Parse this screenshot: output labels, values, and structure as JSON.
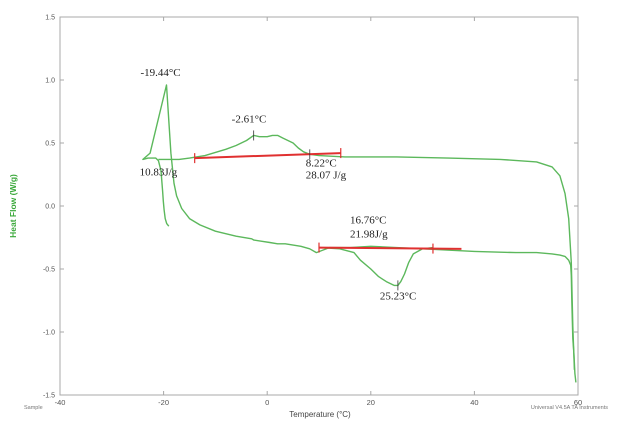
{
  "chart_data": {
    "type": "line",
    "title": "",
    "xlabel": "Temperature (°C)",
    "ylabel": "Heat Flow (W/g)",
    "xlim": [
      -40,
      60
    ],
    "ylim": [
      -1.5,
      1.5
    ],
    "x_ticks": [
      "-40",
      "-20",
      "0",
      "20",
      "40",
      "60"
    ],
    "y_ticks": [
      "1.5",
      "1.0",
      "0.5",
      "0.0",
      "-0.5",
      "-1.0",
      "-1.5"
    ],
    "grid": false,
    "colors": {
      "curve": "#5cb85c",
      "baseline": "#e03030",
      "axis": "#999999"
    },
    "series": [
      {
        "x": [
          -19.0,
          -19.4,
          -19.7,
          -19.9,
          -20.05,
          -20.2,
          -20.5,
          -21.0,
          -21.5,
          -22.0,
          -22.5,
          -23.0,
          -24.0,
          -22.6,
          -19.44,
          -18.6,
          -18.0,
          -17.5,
          -16.5,
          -15.0,
          -13.0,
          -10.0,
          -6.0,
          -3.0,
          -2.61,
          -1.0,
          0.5,
          2.0,
          3.5,
          5.0,
          6.5,
          8.2,
          9.5,
          12.0,
          16.0,
          20.0,
          30.0,
          40.0,
          48.0,
          52.0,
          55.0,
          56.5,
          57.5,
          58.2,
          58.6,
          58.7,
          58.8,
          59.0,
          59.2,
          59.4,
          59.6
        ],
        "y": [
          -0.16,
          -0.14,
          -0.1,
          -0.03,
          0.04,
          0.12,
          0.28,
          0.36,
          0.38,
          0.38,
          0.38,
          0.38,
          0.37,
          0.42,
          0.96,
          0.42,
          0.18,
          0.08,
          -0.02,
          -0.1,
          -0.15,
          -0.2,
          -0.24,
          -0.26,
          -0.27,
          -0.28,
          -0.29,
          -0.3,
          -0.3,
          -0.31,
          -0.32,
          -0.34,
          -0.37,
          -0.33,
          -0.33,
          -0.32,
          -0.34,
          -0.36,
          -0.37,
          -0.37,
          -0.38,
          -0.39,
          -0.4,
          -0.43,
          -0.47,
          -0.55,
          -0.75,
          -1.05,
          -1.17,
          -1.33,
          -1.4
        ]
      },
      {
        "x": [
          -21.0,
          -19.0,
          -17.0,
          -15.0,
          -12.0,
          -8.0,
          -6.0,
          -4.0,
          -2.61,
          -1.5,
          0.0,
          1.0,
          2.0,
          3.0,
          4.0,
          5.0,
          6.0,
          7.0,
          8.22,
          10.0,
          15.0,
          25.0,
          35.0,
          45.0,
          52.0,
          55.0,
          56.5,
          57.5,
          58.2,
          58.7,
          59.0,
          59.3
        ],
        "y": [
          0.37,
          0.37,
          0.37,
          0.38,
          0.4,
          0.45,
          0.48,
          0.52,
          0.56,
          0.55,
          0.55,
          0.56,
          0.56,
          0.54,
          0.52,
          0.5,
          0.46,
          0.43,
          0.41,
          0.4,
          0.39,
          0.39,
          0.38,
          0.37,
          0.35,
          0.31,
          0.24,
          0.1,
          -0.1,
          -0.45,
          -0.95,
          -1.3
        ]
      },
      {
        "x": [
          10.0,
          14.0,
          16.76,
          18.0,
          20.0,
          21.5,
          23.0,
          24.5,
          25.23,
          25.8,
          26.5,
          27.3,
          28.2,
          30.0,
          32.0
        ],
        "y": [
          -0.33,
          -0.34,
          -0.37,
          -0.43,
          -0.5,
          -0.56,
          -0.6,
          -0.63,
          -0.63,
          -0.6,
          -0.54,
          -0.45,
          -0.38,
          -0.34,
          -0.33
        ]
      }
    ],
    "baselines": [
      {
        "x1": -14,
        "y1": 0.38,
        "x2": 14.2,
        "y2": 0.42,
        "ticks": [
          -14,
          14.2
        ]
      },
      {
        "x1": 10,
        "y1": -0.33,
        "x2": 37.5,
        "y2": -0.34,
        "ticks": [
          10,
          32
        ]
      }
    ],
    "annotations": [
      {
        "text": "-19.44°C",
        "x": -19.44,
        "y": 0.96
      },
      {
        "text": "-2.61°C",
        "x": -2.61,
        "y": 0.56
      },
      {
        "text": "8.22°C",
        "x": 8.22,
        "y": 0.41
      },
      {
        "text": "28.07 J/g",
        "x": 8.22,
        "y": 0.41
      },
      {
        "text": "10.83J/g",
        "x": -20,
        "y": 0.37
      },
      {
        "text": "16.76°C",
        "x": 16.76,
        "y": -0.33
      },
      {
        "text": "21.98J/g",
        "x": 16.76,
        "y": -0.33
      },
      {
        "text": "25.23°C",
        "x": 25.23,
        "y": -0.63
      }
    ]
  },
  "footer": {
    "left": "Sample",
    "right": "Universal V4.5A TA Instruments"
  }
}
